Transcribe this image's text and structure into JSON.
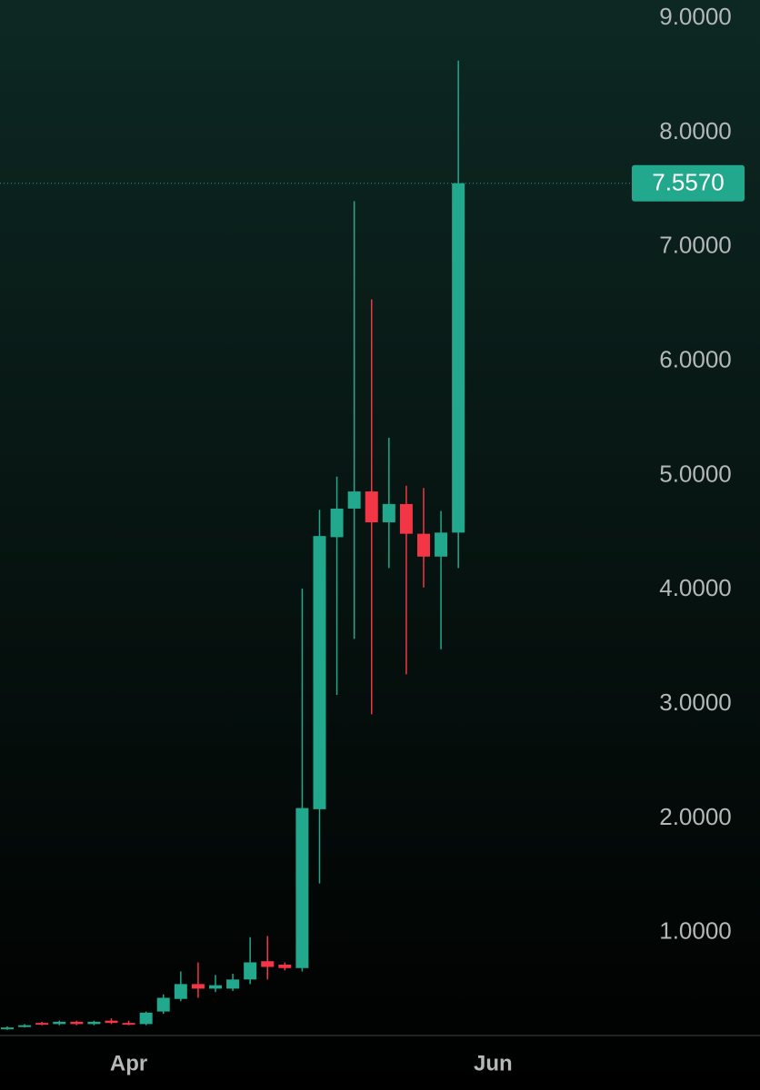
{
  "chart_data": {
    "type": "candlestick",
    "up_color": "#22a88c",
    "down_color": "#f23645",
    "x": [
      0,
      1,
      2,
      3,
      4,
      5,
      6,
      7,
      8,
      9,
      10,
      11,
      12,
      13,
      14,
      15,
      16,
      17,
      18,
      19,
      20,
      21,
      22,
      23,
      24,
      25,
      26
    ],
    "open": [
      0.16,
      0.18,
      0.21,
      0.2,
      0.22,
      0.2,
      0.23,
      0.21,
      0.2,
      0.31,
      0.42,
      0.55,
      0.51,
      0.51,
      0.59,
      0.75,
      0.72,
      0.69,
      2.08,
      4.46,
      4.71,
      4.86,
      4.59,
      4.75,
      4.49,
      4.29,
      4.5
    ],
    "high": [
      0.18,
      0.2,
      0.22,
      0.23,
      0.23,
      0.23,
      0.25,
      0.23,
      0.31,
      0.46,
      0.66,
      0.74,
      0.63,
      0.64,
      0.96,
      0.97,
      0.74,
      4.01,
      4.7,
      4.99,
      7.4,
      6.54,
      5.33,
      4.91,
      4.89,
      4.69,
      8.63
    ],
    "low": [
      0.15,
      0.17,
      0.19,
      0.19,
      0.19,
      0.19,
      0.2,
      0.19,
      0.19,
      0.29,
      0.4,
      0.43,
      0.48,
      0.49,
      0.55,
      0.59,
      0.67,
      0.66,
      1.43,
      3.08,
      3.57,
      2.91,
      4.19,
      3.26,
      4.02,
      3.48,
      4.19
    ],
    "close": [
      0.17,
      0.19,
      0.2,
      0.22,
      0.2,
      0.22,
      0.21,
      0.2,
      0.3,
      0.43,
      0.55,
      0.51,
      0.54,
      0.59,
      0.74,
      0.7,
      0.69,
      2.09,
      4.47,
      4.71,
      4.86,
      4.59,
      4.75,
      4.49,
      4.29,
      4.5,
      7.557
    ],
    "xlim": [
      -0.5,
      36.5
    ],
    "xticks": [
      {
        "value": 7,
        "label": "Apr"
      },
      {
        "value": 28,
        "label": "Jun"
      }
    ],
    "ylim": [
      0.1,
      9.16
    ],
    "yticks": [
      {
        "value": 1,
        "label": "1.0000"
      },
      {
        "value": 2,
        "label": "2.0000"
      },
      {
        "value": 3,
        "label": "3.0000"
      },
      {
        "value": 4,
        "label": "4.0000"
      },
      {
        "value": 5,
        "label": "5.0000"
      },
      {
        "value": 6,
        "label": "6.0000"
      },
      {
        "value": 7,
        "label": "7.0000"
      },
      {
        "value": 8,
        "label": "8.0000"
      },
      {
        "value": 9,
        "label": "9.0000"
      }
    ],
    "last_price": {
      "value": 7.557,
      "label": "7.5570"
    }
  }
}
